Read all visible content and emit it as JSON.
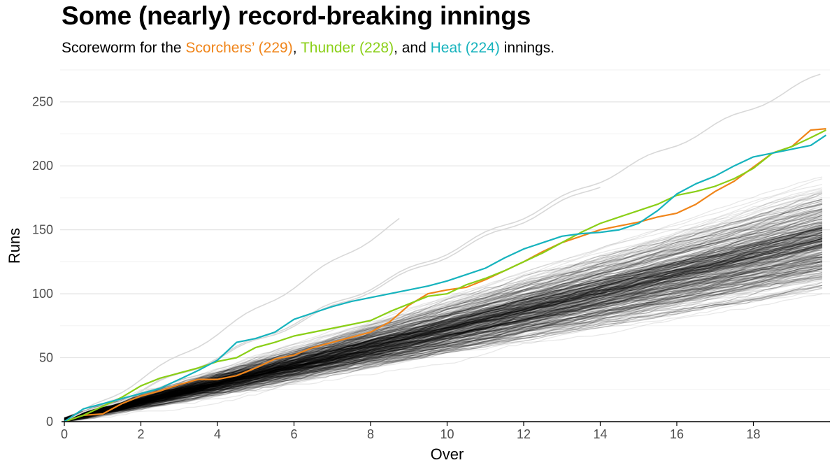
{
  "title": "Some (nearly) record-breaking innings",
  "subtitle": {
    "prefix": "Scoreworm for the ",
    "s1": "Scorchers’ (229)",
    "sep1": ", ",
    "s2": "Thunder (228)",
    "sep2": ", and ",
    "s3": "Heat (224)",
    "suffix": " innings."
  },
  "colors": {
    "scorchers": "#F0851A",
    "thunder": "#8ACF17",
    "heat": "#16B3BD",
    "background_innings": "#000000"
  },
  "chart_data": {
    "type": "line",
    "title": "Some (nearly) record-breaking innings",
    "xlabel": "Over",
    "ylabel": "Runs",
    "xlim": [
      0,
      20
    ],
    "ylim": [
      0,
      275
    ],
    "x_ticks": [
      0,
      2,
      4,
      6,
      8,
      10,
      12,
      14,
      16,
      18
    ],
    "y_ticks": [
      0,
      50,
      100,
      150,
      200,
      250
    ],
    "grid": "horizontal major and minor",
    "background_series_description": "All other innings drawn as translucent black worms",
    "series": [
      {
        "name": "Scorchers (229)",
        "color_key": "scorchers",
        "x": [
          0,
          0.5,
          1,
          1.5,
          2,
          2.5,
          3,
          3.5,
          4,
          4.5,
          5,
          5.5,
          6,
          6.5,
          7,
          7.5,
          8,
          8.5,
          9,
          9.5,
          10,
          10.5,
          11,
          11.5,
          12,
          12.5,
          13,
          13.5,
          14,
          14.5,
          15,
          15.5,
          16,
          16.5,
          17,
          17.5,
          18,
          18.5,
          19,
          19.5,
          19.9
        ],
        "values": [
          0,
          5,
          6,
          14,
          20,
          24,
          29,
          33,
          33,
          36,
          42,
          49,
          52,
          58,
          62,
          66,
          70,
          78,
          91,
          100,
          103,
          105,
          111,
          118,
          125,
          133,
          140,
          145,
          150,
          153,
          156,
          160,
          163,
          170,
          180,
          188,
          199,
          210,
          215,
          228,
          229
        ]
      },
      {
        "name": "Thunder (228)",
        "color_key": "thunder",
        "x": [
          0,
          0.5,
          1,
          1.5,
          2,
          2.5,
          3,
          3.5,
          4,
          4.5,
          5,
          5.5,
          6,
          6.5,
          7,
          7.5,
          8,
          8.5,
          9,
          9.5,
          10,
          10.5,
          11,
          11.5,
          12,
          12.5,
          13,
          13.5,
          14,
          14.5,
          15,
          15.5,
          16,
          16.5,
          17,
          17.5,
          18,
          18.5,
          19,
          19.5,
          19.9
        ],
        "values": [
          0,
          5,
          12,
          19,
          28,
          34,
          38,
          42,
          47,
          50,
          58,
          62,
          67,
          70,
          73,
          76,
          79,
          86,
          92,
          98,
          100,
          107,
          112,
          118,
          125,
          132,
          140,
          148,
          155,
          160,
          165,
          170,
          177,
          180,
          184,
          190,
          198,
          210,
          215,
          222,
          228
        ]
      },
      {
        "name": "Heat (224)",
        "color_key": "heat",
        "x": [
          0,
          0.5,
          1,
          1.5,
          2,
          2.5,
          3,
          3.5,
          4,
          4.5,
          5,
          5.5,
          6,
          6.5,
          7,
          7.5,
          8,
          8.5,
          9,
          9.5,
          10,
          10.5,
          11,
          11.5,
          12,
          12.5,
          13,
          13.5,
          14,
          14.5,
          15,
          15.5,
          16,
          16.5,
          17,
          17.5,
          18,
          18.5,
          19,
          19.5,
          19.9
        ],
        "values": [
          0,
          10,
          14,
          18,
          22,
          26,
          33,
          40,
          48,
          62,
          65,
          70,
          80,
          85,
          90,
          94,
          97,
          100,
          103,
          106,
          110,
          115,
          120,
          128,
          135,
          140,
          145,
          147,
          148,
          150,
          155,
          165,
          178,
          186,
          192,
          200,
          207,
          210,
          213,
          216,
          224
        ]
      }
    ]
  }
}
